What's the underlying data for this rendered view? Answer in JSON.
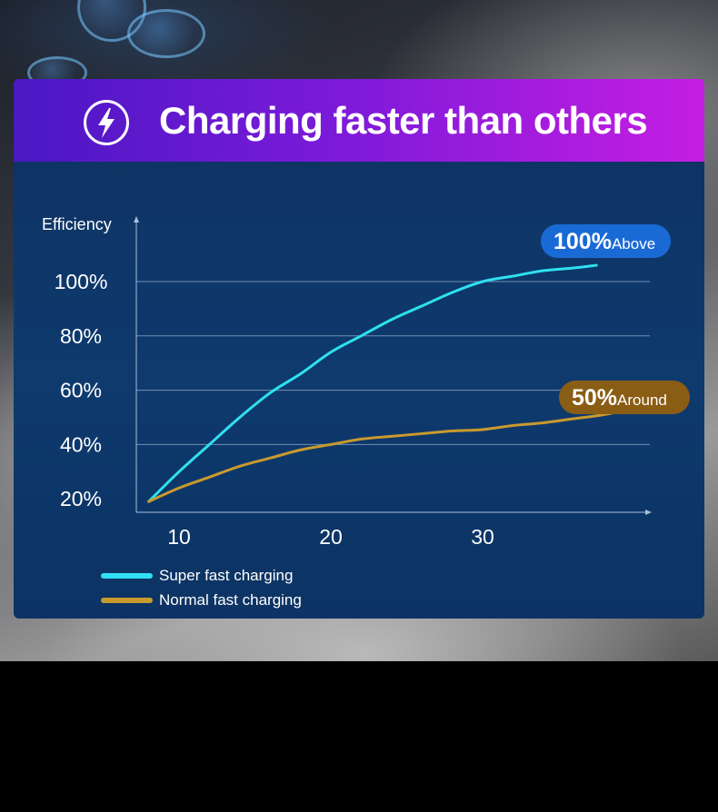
{
  "banner": {
    "icon": "lightning-bolt-icon",
    "title": "Charging faster than others"
  },
  "colors": {
    "super": "#2fe0f0",
    "normal": "#c99a2e",
    "badge_super": "#1a6ad6",
    "badge_normal": "#8a5d14"
  },
  "chart_data": {
    "type": "line",
    "ylabel": "Efficiency",
    "xlabel": "",
    "y_ticks": [
      "20%",
      "40%",
      "60%",
      "80%",
      "100%"
    ],
    "x_ticks": [
      "10",
      "20",
      "30"
    ],
    "series": [
      {
        "name": "Super fast charging",
        "x": [
          8,
          10,
          12,
          14,
          16,
          18,
          20,
          22,
          24,
          26,
          28,
          30,
          32,
          34,
          36,
          37.5
        ],
        "y": [
          19,
          30,
          40,
          50,
          59,
          66,
          74,
          80,
          86,
          91,
          96,
          100,
          102,
          104,
          105,
          106
        ],
        "annotation": {
          "value": "100%",
          "suffix": "Above"
        }
      },
      {
        "name": "Normal fast charging",
        "x": [
          8,
          10,
          12,
          14,
          16,
          18,
          20,
          22,
          24,
          26,
          28,
          30,
          32,
          34,
          36,
          38,
          40.5
        ],
        "y": [
          19,
          24,
          28,
          32,
          35,
          38,
          40,
          42,
          43,
          44,
          45,
          45.5,
          47,
          48,
          49.5,
          51,
          54
        ],
        "annotation": {
          "value": "50%",
          "suffix": "Around"
        }
      }
    ],
    "legend": "bottom-left"
  }
}
